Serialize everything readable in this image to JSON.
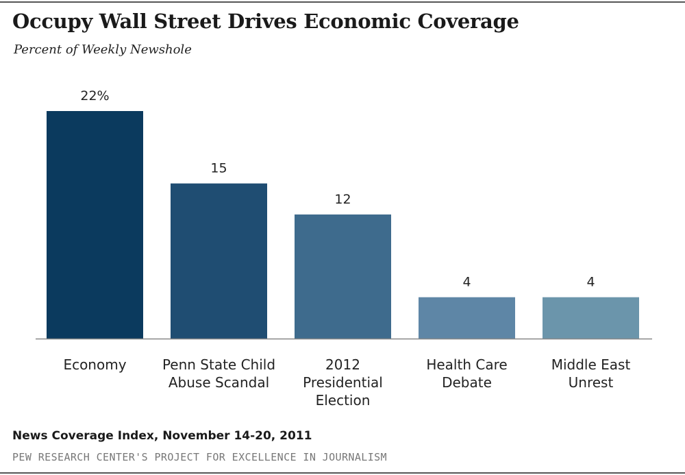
{
  "header": {
    "title": "Occupy Wall Street Drives Economic Coverage",
    "subtitle": "Percent of Weekly Newshole"
  },
  "footer": {
    "source": "News Coverage Index,  November 14-20,  2011",
    "credit": "PEW RESEARCH CENTER'S PROJECT FOR EXCELLENCE IN JOURNALISM"
  },
  "chart_data": {
    "type": "bar",
    "title": "Occupy Wall Street Drives Economic Coverage",
    "subtitle": "Percent of Weekly Newshole",
    "categories": [
      [
        "Economy"
      ],
      [
        "Penn State Child",
        "Abuse Scandal"
      ],
      [
        "2012",
        "Presidential",
        "Election"
      ],
      [
        "Health Care",
        "Debate"
      ],
      [
        "Middle East",
        "Unrest"
      ]
    ],
    "values": [
      22,
      15,
      12,
      4,
      4
    ],
    "value_labels": [
      "22%",
      "15",
      "12",
      "4",
      "4"
    ],
    "bar_colors": [
      "#0b3a5e",
      "#1f4d72",
      "#3e6b8d",
      "#5e86a6",
      "#6b95ab"
    ],
    "ylim": [
      0,
      22
    ],
    "grid": false,
    "legend": "none"
  }
}
